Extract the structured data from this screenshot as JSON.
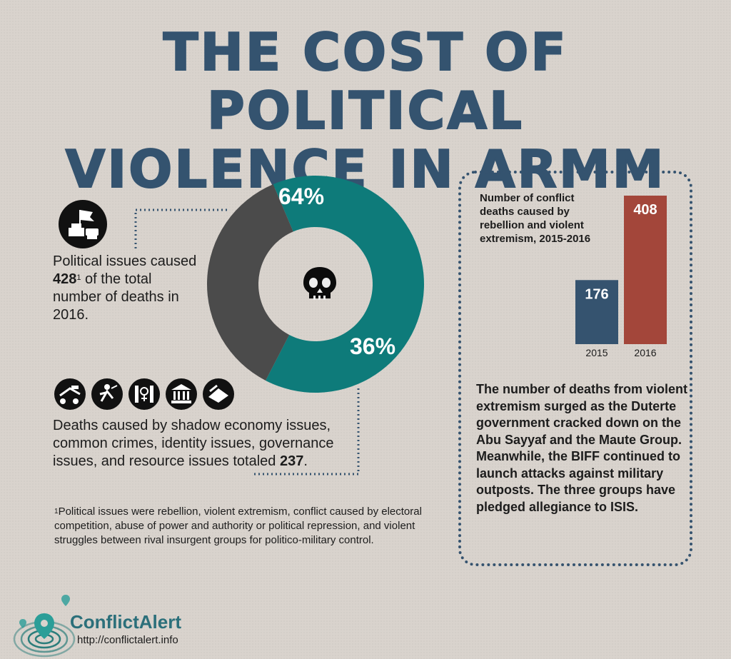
{
  "title": {
    "line1": "THE COST OF POLITICAL",
    "line2": "VIOLENCE IN ARMM"
  },
  "political": {
    "text_before": "Political issues caused ",
    "value": "428",
    "sup": "1",
    "text_after": " of the total number of deaths in 2016."
  },
  "other": {
    "text_before": "Deaths caused by shadow economy issues, common crimes, identity issues, governance issues, and resource issues totaled ",
    "value": "237",
    "text_after": "."
  },
  "footnote": {
    "sup": "1",
    "text": "Political issues were rebellion, violent extremism, conflict caused by electoral competition, abuse of power and authority or political repression, and violent struggles between rival insurgent groups for politico-military control."
  },
  "bar_description": "The number of deaths from violent extremism surged as the Duterte government cracked down on the Abu Sayyaf and the Maute Group. Meanwhile, the BIFF continued to launch attacks against military outposts. The three groups have pledged allegiance to ISIS.",
  "logo": {
    "name": "ConflictAlert",
    "url": "http://conflictalert.info"
  },
  "chart_data": [
    {
      "type": "pie",
      "variant": "donut",
      "slices": [
        {
          "label": "64%",
          "value": 64,
          "color": "#0e7b7a"
        },
        {
          "label": "36%",
          "value": 36,
          "color": "#4b4b4b"
        }
      ],
      "center_icon": "skull-icon"
    },
    {
      "type": "bar",
      "title": "Number of conflict deaths caused by rebellion and violent extremism, 2015-2016",
      "categories": [
        "2015",
        "2016"
      ],
      "values": [
        176,
        408
      ],
      "colors": [
        "#35536f",
        "#a3463a"
      ],
      "ylim": [
        0,
        408
      ]
    }
  ],
  "colors": {
    "title": "#34536f",
    "teal": "#0e7b7a",
    "gray": "#4b4b4b",
    "navy": "#35536f",
    "red": "#a3463a"
  },
  "icons": [
    "political-icon",
    "shadow-economy-icon",
    "common-crime-icon",
    "identity-icon",
    "governance-icon",
    "resource-icon",
    "skull-icon",
    "location-pin-icon"
  ]
}
